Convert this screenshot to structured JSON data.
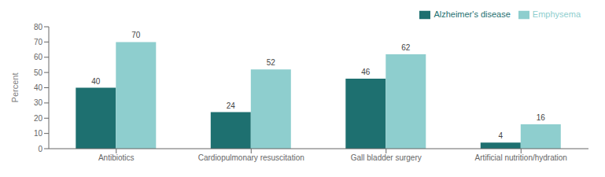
{
  "chart_data": {
    "type": "bar",
    "categories": [
      "Antibiotics",
      "Cardiopulmonary resuscitation",
      "Gall bladder surgery",
      "Artificial nutrition/hydration"
    ],
    "series": [
      {
        "name": "Alzheimer's disease",
        "color": "#1e7070",
        "values": [
          40,
          24,
          46,
          4
        ]
      },
      {
        "name": "Emphysema",
        "color": "#8ecece",
        "values": [
          70,
          52,
          62,
          16
        ]
      }
    ],
    "ylabel": "Percent",
    "ylim": [
      0,
      80
    ],
    "yticks": [
      0,
      10,
      20,
      30,
      40,
      50,
      60,
      70,
      80
    ],
    "grid": false,
    "legend": "upper right",
    "data_labels": true
  }
}
